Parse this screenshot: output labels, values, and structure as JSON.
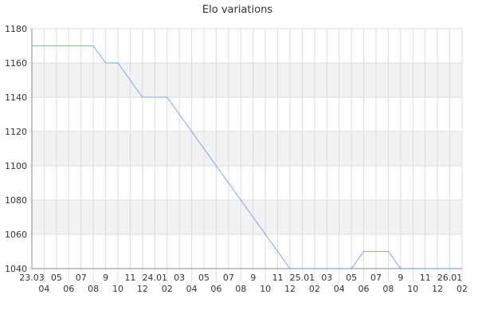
{
  "chart_data": {
    "type": "line",
    "title": "Elo variations",
    "xlabel": "",
    "ylabel": "",
    "ylim": [
      1040,
      1180
    ],
    "yticks": [
      1040,
      1060,
      1080,
      1100,
      1120,
      1140,
      1160,
      1180
    ],
    "categories": [
      "23.03",
      "04",
      "05",
      "06",
      "07",
      "08",
      "9",
      "10",
      "11",
      "12",
      "24.01",
      "02",
      "03",
      "04",
      "05",
      "06",
      "07",
      "08",
      "9",
      "10",
      "11",
      "12",
      "25.01",
      "02",
      "03",
      "04",
      "05",
      "06",
      "07",
      "08",
      "9",
      "10",
      "11",
      "12",
      "26.01",
      "02"
    ],
    "series": [
      {
        "values": [
          1170,
          1170,
          1170,
          1170,
          1170,
          1170,
          1160,
          1160,
          1150,
          1140,
          1140,
          1140,
          1130,
          1120,
          1110,
          1100,
          1090,
          1080,
          1070,
          1060,
          1050,
          1040,
          1040,
          1040,
          1040,
          1040,
          1040,
          1050,
          1050,
          1050,
          1040,
          1040,
          1040,
          1040,
          1040,
          1040
        ]
      }
    ],
    "grid": true,
    "colors": {
      "line": "#6495ed",
      "band": "#f2f2f2",
      "grid": "#dddddd"
    }
  }
}
